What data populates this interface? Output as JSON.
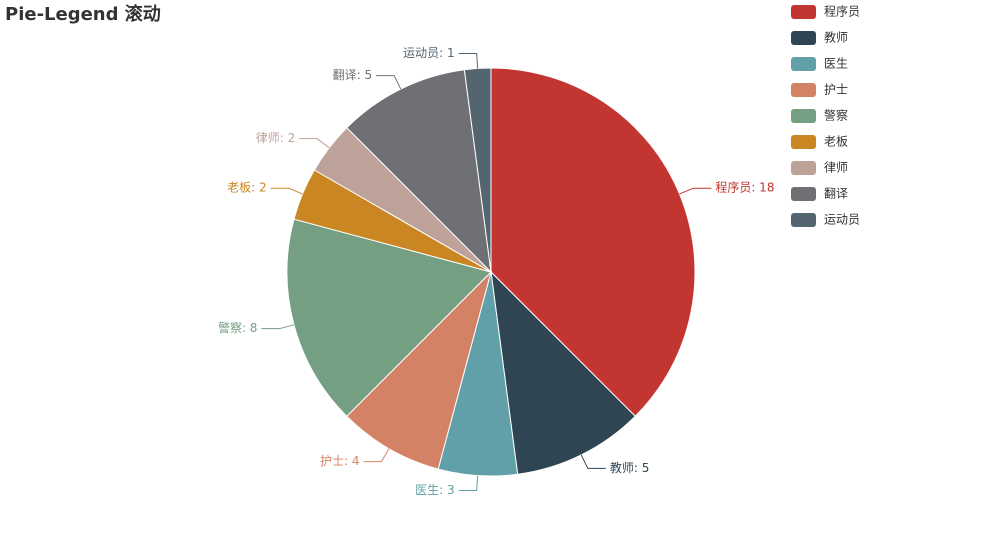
{
  "chart_data": {
    "type": "pie",
    "title": "Pie-Legend 滚动",
    "categories": [
      "程序员",
      "教师",
      "医生",
      "护士",
      "警察",
      "老板",
      "律师",
      "翻译",
      "运动员"
    ],
    "values": [
      18,
      5,
      3,
      4,
      8,
      2,
      2,
      5,
      1
    ],
    "value_labels": [
      "程序员: 18",
      "教师: 5",
      "医生: 3",
      "护士: 4",
      "警察: 8",
      "老板: 2",
      "律师: 2",
      "翻译: 5",
      "运动员: 1"
    ],
    "colors": [
      "#c23531",
      "#2f4554",
      "#61a0a8",
      "#d48265",
      "#749f83",
      "#ca8622",
      "#bda29a",
      "#6e7074",
      "#546570"
    ],
    "legend": "top-right"
  }
}
